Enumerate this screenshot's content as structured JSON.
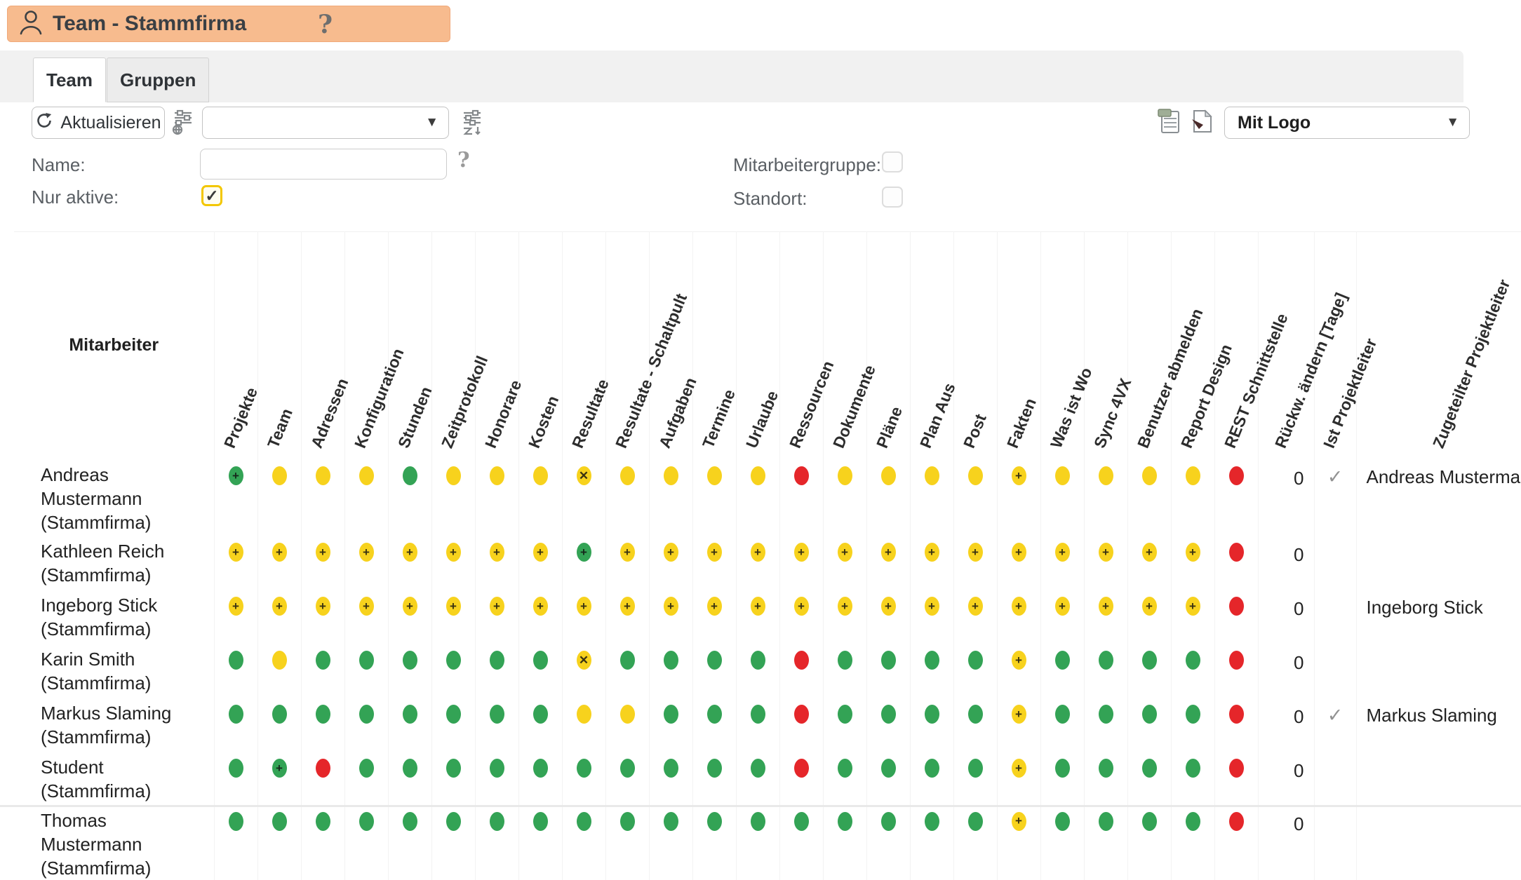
{
  "glyphs": {
    "check": "✓",
    "caret": "▼",
    "plus": "+",
    "cross": "✕",
    "help": "?"
  },
  "title": {
    "text": "Team - Stammfirma"
  },
  "tabs": {
    "team": "Team",
    "gruppen": "Gruppen"
  },
  "toolbar": {
    "refresh": "Aktualisieren",
    "filter_dropdown_value": "",
    "logo_dropdown_value": "Mit Logo"
  },
  "filters": {
    "name_label": "Name:",
    "name_value": "",
    "nur_aktive_label": "Nur aktive:",
    "nur_aktive_checked": true,
    "mitarbeitergruppe_label": "Mitarbeitergruppe:",
    "mitarbeitergruppe_checked": false,
    "standort_label": "Standort:",
    "standort_checked": false
  },
  "colors": {
    "green": "#33a355",
    "yellow": "#f7d21d",
    "red": "#e5262a",
    "titlebar_bg": "#f7bb8e"
  },
  "table": {
    "first_column_header": "Mitarbeiter",
    "permission_columns": [
      "Projekte",
      "Team",
      "Adressen",
      "Konfiguration",
      "Stunden",
      "Zeitprotokoll",
      "Honorare",
      "Kosten",
      "Resultate",
      "Resultate - Schaltpult",
      "Aufgaben",
      "Termine",
      "Urlaube",
      "Ressourcen",
      "Dokumente",
      "Pläne",
      "Plan Aus",
      "Post",
      "Fakten",
      "Was ist Wo",
      "Sync 4VX",
      "Benutzer abmelden",
      "Report Design",
      "REST Schnittstelle"
    ],
    "extra_columns": [
      "Rückw. ändern [Tage]",
      "Ist Projektleiter",
      "Zugeteilter Projektleiter"
    ],
    "dot_legend": {
      "g": "green",
      "y": "yellow",
      "r": "red",
      "+": "plus-symbol",
      "x": "cross-symbol"
    },
    "rows": [
      {
        "name": "Andreas Mustermann (Stammfirma)",
        "dots": [
          "g+",
          "y",
          "y",
          "y",
          "g",
          "y",
          "y",
          "y",
          "yx",
          "y",
          "y",
          "y",
          "y",
          "r",
          "y",
          "y",
          "y",
          "y",
          "y+",
          "y",
          "y",
          "y",
          "y",
          "r"
        ],
        "rueckw": "0",
        "ist_projektleiter": true,
        "zugeteilter_projektleiter": "Andreas Mustermann"
      },
      {
        "name": "Kathleen Reich (Stammfirma)",
        "dots": [
          "y+",
          "y+",
          "y+",
          "y+",
          "y+",
          "y+",
          "y+",
          "y+",
          "g+",
          "y+",
          "y+",
          "y+",
          "y+",
          "y+",
          "y+",
          "y+",
          "y+",
          "y+",
          "y+",
          "y+",
          "y+",
          "y+",
          "y+",
          "r"
        ],
        "rueckw": "0",
        "ist_projektleiter": false,
        "zugeteilter_projektleiter": ""
      },
      {
        "name": "Ingeborg Stick (Stammfirma)",
        "dots": [
          "y+",
          "y+",
          "y+",
          "y+",
          "y+",
          "y+",
          "y+",
          "y+",
          "y+",
          "y+",
          "y+",
          "y+",
          "y+",
          "y+",
          "y+",
          "y+",
          "y+",
          "y+",
          "y+",
          "y+",
          "y+",
          "y+",
          "y+",
          "r"
        ],
        "rueckw": "0",
        "ist_projektleiter": false,
        "zugeteilter_projektleiter": "Ingeborg Stick"
      },
      {
        "name": "Karin Smith (Stammfirma)",
        "dots": [
          "g",
          "y",
          "g",
          "g",
          "g",
          "g",
          "g",
          "g",
          "yx",
          "g",
          "g",
          "g",
          "g",
          "r",
          "g",
          "g",
          "g",
          "g",
          "y+",
          "g",
          "g",
          "g",
          "g",
          "r"
        ],
        "rueckw": "0",
        "ist_projektleiter": false,
        "zugeteilter_projektleiter": ""
      },
      {
        "name": "Markus Slaming (Stammfirma)",
        "dots": [
          "g",
          "g",
          "g",
          "g",
          "g",
          "g",
          "g",
          "g",
          "y",
          "y",
          "g",
          "g",
          "g",
          "r",
          "g",
          "g",
          "g",
          "g",
          "y+",
          "g",
          "g",
          "g",
          "g",
          "r"
        ],
        "rueckw": "0",
        "ist_projektleiter": true,
        "zugeteilter_projektleiter": "Markus Slaming"
      },
      {
        "name": "Student (Stammfirma)",
        "dots": [
          "g",
          "g+",
          "r",
          "g",
          "g",
          "g",
          "g",
          "g",
          "g",
          "g",
          "g",
          "g",
          "g",
          "r",
          "g",
          "g",
          "g",
          "g",
          "y+",
          "g",
          "g",
          "g",
          "g",
          "r"
        ],
        "rueckw": "0",
        "ist_projektleiter": false,
        "zugeteilter_projektleiter": ""
      },
      {
        "name": "Thomas Mustermann (Stammfirma)",
        "dots": [
          "g",
          "g",
          "g",
          "g",
          "g",
          "g",
          "g",
          "g",
          "g",
          "g",
          "g",
          "g",
          "g",
          "g",
          "g",
          "g",
          "g",
          "g",
          "y+",
          "g",
          "g",
          "g",
          "g",
          "r"
        ],
        "rueckw": "0",
        "ist_projektleiter": false,
        "zugeteilter_projektleiter": ""
      }
    ]
  }
}
